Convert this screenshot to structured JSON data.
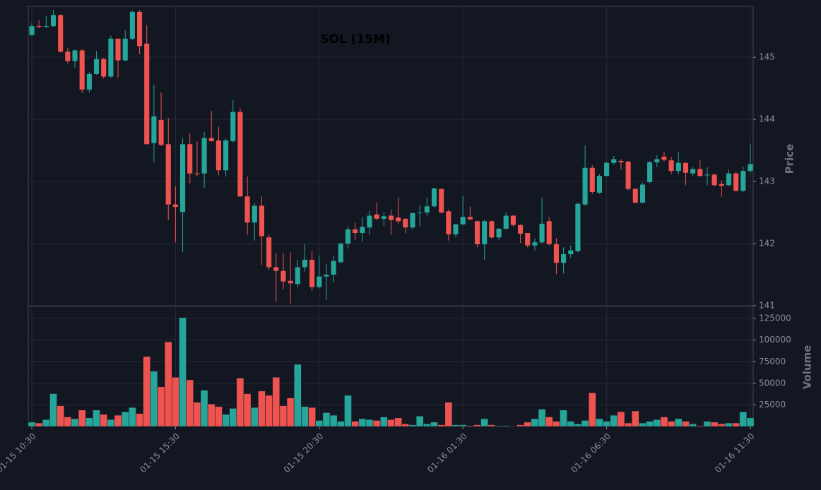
{
  "chart_data": {
    "type": "candlestick",
    "title": "SOL (15M)",
    "ylabel": "Price",
    "volume_label": "Volume",
    "up_color": "#26a69a",
    "down_color": "#ef5350",
    "grid": true,
    "categories": [
      "01-15 10:30",
      null,
      null,
      null,
      null,
      null,
      null,
      null,
      null,
      null,
      null,
      null,
      null,
      null,
      null,
      null,
      null,
      null,
      null,
      null,
      "01-15 15:30",
      null,
      null,
      null,
      null,
      null,
      null,
      null,
      null,
      null,
      null,
      null,
      null,
      null,
      null,
      null,
      null,
      null,
      null,
      null,
      "01-15 20:30",
      null,
      null,
      null,
      null,
      null,
      null,
      null,
      null,
      null,
      null,
      null,
      null,
      null,
      null,
      null,
      null,
      null,
      null,
      null,
      "01-16 01:30",
      null,
      null,
      null,
      null,
      null,
      null,
      null,
      null,
      null,
      null,
      null,
      null,
      null,
      null,
      null,
      null,
      null,
      null,
      null,
      "01-16 06:30",
      null,
      null,
      null,
      null,
      null,
      null,
      null,
      null,
      null,
      null,
      null,
      null,
      null,
      null,
      null,
      null,
      null,
      null,
      null,
      "01-16 11:30"
    ],
    "open": [
      145.36,
      145.5,
      145.49,
      145.5,
      145.68,
      145.09,
      144.94,
      145.11,
      144.48,
      144.73,
      144.97,
      144.69,
      145.3,
      144.95,
      145.3,
      145.73,
      145.22,
      143.62,
      143.99,
      143.6,
      142.63,
      142.51,
      143.6,
      143.13,
      143.13,
      143.7,
      143.66,
      143.18,
      143.65,
      144.12,
      142.76,
      142.34,
      142.61,
      142.1,
      141.62,
      141.56,
      141.4,
      141.35,
      141.62,
      141.74,
      141.3,
      141.47,
      141.5,
      141.7,
      142.0,
      142.23,
      142.17,
      142.26,
      142.47,
      142.4,
      142.45,
      142.42,
      142.4,
      142.26,
      142.49,
      142.5,
      142.6,
      142.88,
      142.52,
      142.15,
      142.31,
      142.43,
      142.36,
      141.99,
      142.36,
      142.1,
      142.24,
      142.45,
      142.3,
      142.17,
      141.97,
      142.02,
      142.36,
      141.99,
      141.69,
      141.83,
      141.88,
      142.63,
      143.22,
      142.82,
      143.09,
      143.3,
      143.33,
      143.32,
      142.88,
      142.66,
      142.99,
      143.31,
      143.4,
      143.34,
      143.17,
      143.3,
      143.13,
      143.2,
      143.1,
      143.11,
      142.96,
      142.94,
      143.13,
      142.85,
      143.17
    ],
    "high": [
      145.55,
      145.6,
      145.67,
      145.76,
      145.69,
      145.15,
      145.13,
      145.13,
      144.76,
      145.1,
      144.99,
      145.35,
      145.3,
      145.44,
      145.75,
      145.76,
      145.52,
      144.56,
      144.43,
      144.02,
      142.92,
      143.7,
      143.78,
      143.65,
      143.8,
      144.14,
      143.88,
      143.69,
      144.31,
      144.18,
      143.08,
      142.65,
      142.76,
      142.14,
      141.85,
      141.85,
      141.86,
      141.74,
      141.99,
      141.88,
      141.81,
      141.67,
      141.8,
      142.02,
      142.28,
      142.34,
      142.43,
      142.53,
      142.66,
      142.51,
      142.55,
      142.74,
      142.41,
      142.51,
      142.62,
      142.74,
      142.9,
      142.89,
      142.55,
      142.32,
      142.77,
      142.6,
      142.37,
      142.38,
      142.37,
      142.25,
      142.51,
      142.46,
      142.31,
      142.17,
      142.08,
      142.74,
      142.43,
      142.09,
      141.94,
      141.97,
      142.66,
      143.58,
      143.26,
      143.12,
      143.32,
      143.41,
      143.36,
      143.33,
      142.89,
      142.98,
      143.33,
      143.43,
      143.48,
      143.4,
      143.48,
      143.31,
      143.24,
      143.34,
      143.23,
      143.13,
      143.02,
      143.19,
      143.16,
      143.24,
      143.61
    ],
    "low": [
      145.34,
      145.47,
      145.47,
      145.49,
      145.08,
      144.9,
      144.83,
      144.42,
      144.43,
      144.72,
      144.66,
      144.67,
      144.67,
      144.94,
      145.28,
      145.05,
      143.6,
      143.3,
      143.57,
      142.38,
      142.02,
      141.86,
      142.97,
      143.08,
      142.9,
      143.64,
      143.1,
      143.08,
      143.63,
      142.75,
      142.14,
      142.05,
      141.66,
      141.57,
      141.06,
      141.26,
      141.03,
      141.3,
      141.55,
      141.24,
      141.28,
      141.09,
      141.38,
      141.69,
      141.92,
      142.06,
      142.03,
      142.14,
      142.38,
      142.28,
      142.14,
      142.32,
      142.17,
      142.23,
      142.28,
      142.45,
      142.58,
      142.49,
      142.05,
      142.1,
      142.3,
      142.38,
      141.94,
      141.74,
      142.08,
      142.06,
      142.23,
      142.27,
      142.01,
      141.94,
      141.89,
      142.0,
      141.97,
      141.51,
      141.52,
      141.77,
      141.86,
      142.61,
      142.8,
      142.8,
      143.08,
      143.27,
      143.19,
      142.86,
      142.65,
      142.65,
      142.97,
      143.23,
      143.32,
      143.12,
      143.12,
      142.94,
      143.09,
      143.07,
      142.94,
      142.92,
      142.75,
      142.93,
      142.84,
      142.83,
      143.14
    ],
    "close": [
      145.5,
      145.49,
      145.5,
      145.68,
      145.09,
      144.94,
      145.11,
      144.48,
      144.73,
      144.97,
      144.69,
      145.3,
      144.95,
      145.3,
      145.73,
      145.18,
      143.6,
      144.05,
      143.59,
      142.63,
      142.59,
      143.6,
      143.13,
      143.12,
      143.7,
      143.65,
      143.18,
      143.66,
      144.12,
      142.76,
      142.34,
      142.61,
      142.12,
      141.62,
      141.56,
      141.39,
      141.36,
      141.62,
      141.74,
      141.3,
      141.47,
      141.5,
      141.72,
      142.0,
      142.23,
      142.17,
      142.27,
      142.45,
      142.4,
      142.44,
      142.38,
      142.36,
      142.26,
      142.49,
      142.5,
      142.6,
      142.89,
      142.5,
      142.15,
      142.31,
      142.43,
      142.39,
      141.99,
      142.36,
      142.1,
      142.24,
      142.45,
      142.3,
      142.16,
      141.97,
      142.02,
      142.32,
      141.99,
      141.69,
      141.83,
      141.89,
      142.64,
      143.22,
      142.83,
      143.09,
      143.3,
      143.36,
      143.31,
      142.88,
      142.66,
      142.95,
      143.31,
      143.36,
      143.35,
      143.17,
      143.3,
      143.14,
      143.2,
      143.09,
      143.11,
      142.94,
      142.93,
      143.13,
      142.85,
      143.17,
      143.28
    ],
    "volume": [
      5000,
      4000,
      8000,
      38000,
      24000,
      11000,
      9000,
      19000,
      10000,
      19000,
      14000,
      8000,
      13000,
      17000,
      22000,
      15000,
      81000,
      64000,
      46000,
      98000,
      57000,
      126000,
      54000,
      28000,
      42000,
      26000,
      23000,
      14000,
      21000,
      56000,
      38000,
      22000,
      41000,
      36000,
      57000,
      24000,
      33000,
      72000,
      23000,
      22000,
      7000,
      16000,
      13000,
      6000,
      36000,
      6000,
      9000,
      8000,
      7000,
      11000,
      8000,
      10000,
      3000,
      2000,
      12000,
      3000,
      5000,
      2000,
      28000,
      2000,
      2000,
      1000,
      2000,
      9000,
      2000,
      1000,
      1000,
      500,
      2000,
      5000,
      9000,
      20000,
      11000,
      6000,
      19000,
      6000,
      3000,
      7000,
      39000,
      9000,
      6000,
      13000,
      17000,
      4000,
      18000,
      4000,
      6000,
      8000,
      11000,
      6000,
      9000,
      6000,
      3000,
      1000,
      6000,
      5000,
      3000,
      4000,
      4000,
      17000,
      10000
    ],
    "ylim": [
      141,
      145.82
    ],
    "yticks": [
      141,
      142,
      143,
      144,
      145
    ],
    "vlim": [
      0,
      139000
    ],
    "vticks": [
      25000,
      50000,
      75000,
      100000,
      125000
    ]
  }
}
